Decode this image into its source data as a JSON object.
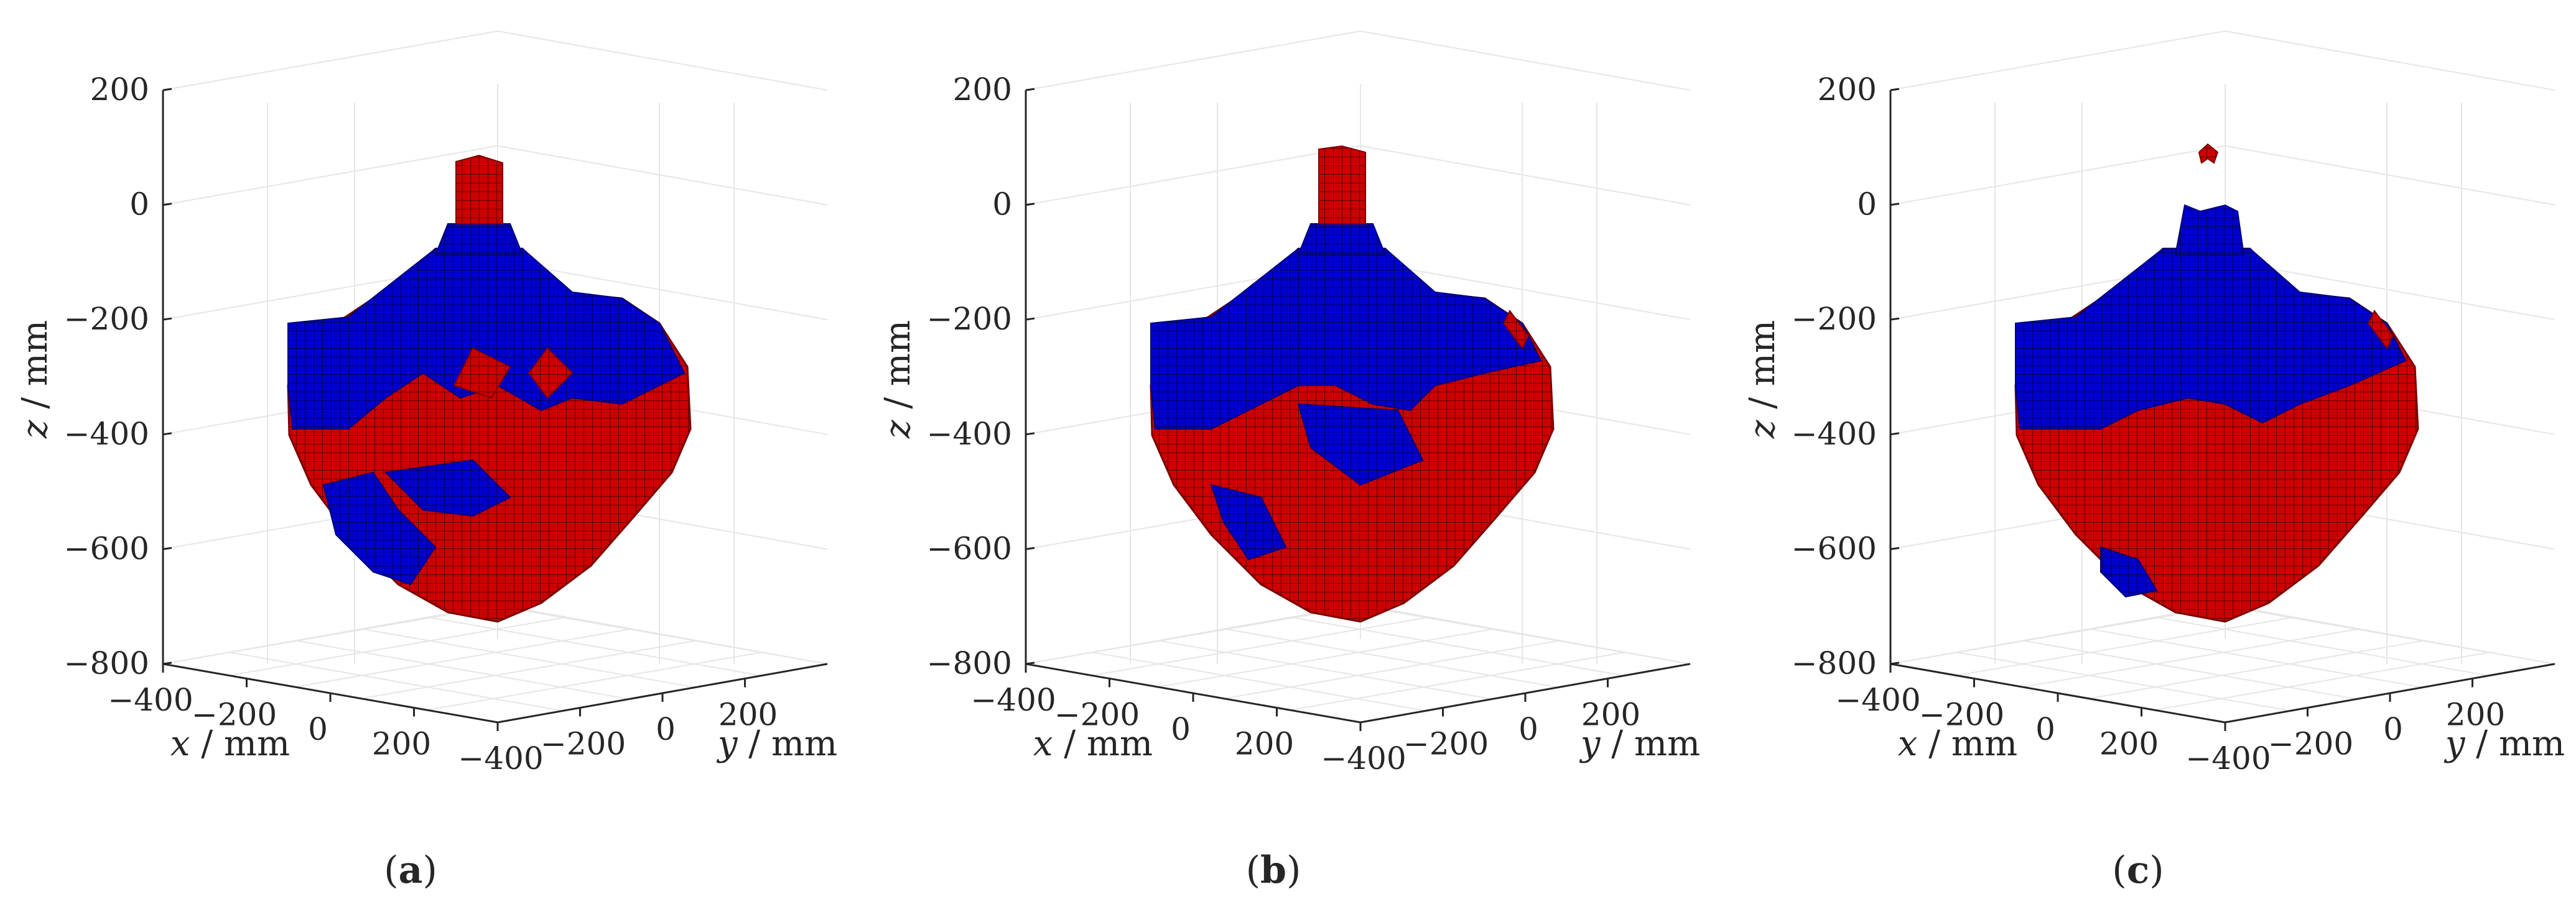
{
  "figure": {
    "panels": [
      {
        "id": "a",
        "caption": "(a)",
        "caption_letter": "a"
      },
      {
        "id": "b",
        "caption": "(b)",
        "caption_letter": "b"
      },
      {
        "id": "c",
        "caption": "(c)",
        "caption_letter": "c"
      }
    ]
  },
  "colors": {
    "red_region": "#cc0000",
    "blue_region": "#0000cc",
    "axis": "#262626",
    "grid": "#e6e6e6",
    "background": "#ffffff"
  },
  "chart_data": [
    {
      "type": "3d-voxel",
      "panel": "(a)",
      "xlabel": "x / mm",
      "ylabel": "y / mm",
      "zlabel": "z / mm",
      "xlim": [
        -400,
        400
      ],
      "ylim": [
        -400,
        400
      ],
      "zlim": [
        -800,
        200
      ],
      "x_ticks": [
        "-400",
        "-200",
        "0",
        "200"
      ],
      "y_ticks": [
        "-400",
        "-200",
        "0",
        "200"
      ],
      "z_ticks": [
        "200",
        "0",
        "-200",
        "-400",
        "-600",
        "-800"
      ],
      "series": [
        {
          "color": "red",
          "z_extent": [
            -730,
            80
          ]
        },
        {
          "color": "blue",
          "z_extent": [
            -730,
            -50
          ]
        }
      ]
    },
    {
      "type": "3d-voxel",
      "panel": "(b)",
      "xlabel": "x / mm",
      "ylabel": "y / mm",
      "zlabel": "z / mm",
      "xlim": [
        -400,
        400
      ],
      "ylim": [
        -400,
        400
      ],
      "zlim": [
        -800,
        200
      ],
      "x_ticks": [
        "-400",
        "-200",
        "0",
        "200"
      ],
      "y_ticks": [
        "-400",
        "-200",
        "0",
        "200"
      ],
      "z_ticks": [
        "200",
        "0",
        "-200",
        "-400",
        "-600",
        "-800"
      ],
      "series": [
        {
          "color": "red",
          "z_extent": [
            -730,
            90
          ]
        },
        {
          "color": "blue",
          "z_extent": [
            -700,
            -50
          ]
        }
      ]
    },
    {
      "type": "3d-voxel",
      "panel": "(c)",
      "xlabel": "x / mm",
      "ylabel": "y / mm",
      "zlabel": "z / mm",
      "xlim": [
        -400,
        400
      ],
      "ylim": [
        -400,
        400
      ],
      "zlim": [
        -800,
        200
      ],
      "x_ticks": [
        "-400",
        "-200",
        "0",
        "200"
      ],
      "y_ticks": [
        "-400",
        "-200",
        "0",
        "200"
      ],
      "z_ticks": [
        "200",
        "0",
        "-200",
        "-400",
        "-600",
        "-800"
      ],
      "series": [
        {
          "color": "red",
          "z_extent": [
            -730,
            90
          ]
        },
        {
          "color": "blue",
          "z_extent": [
            -700,
            -40
          ]
        }
      ]
    }
  ]
}
